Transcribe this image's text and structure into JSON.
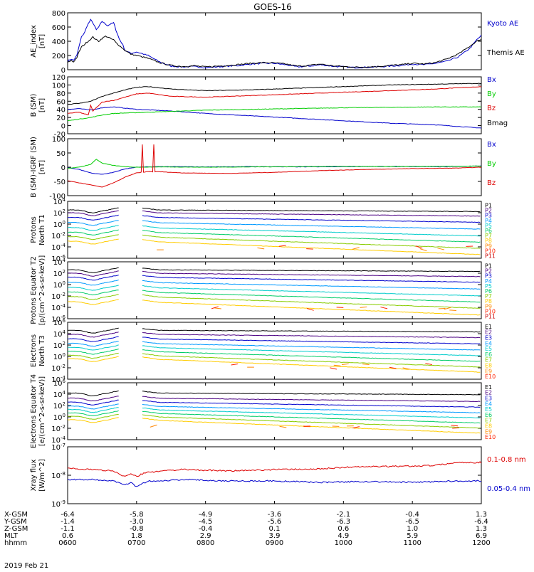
{
  "title": "GOES-16",
  "date": "2019 Feb 21",
  "chart_data": [
    {
      "type": "line",
      "id": "ae",
      "ylabel": "AE_index [nT]",
      "ylim": [
        0,
        800
      ],
      "yticks": [
        "0",
        "200",
        "400",
        "600",
        "800"
      ],
      "series": [
        {
          "name": "Kyoto AE",
          "color": "#0000cc",
          "x": [
            0,
            3,
            5,
            8,
            10,
            12,
            15,
            17,
            20,
            22,
            25,
            27,
            30,
            33,
            35,
            37,
            40,
            42,
            45,
            48,
            50,
            55,
            60,
            70,
            80,
            90,
            100,
            110,
            120,
            130,
            140,
            150,
            160,
            170,
            180,
            190,
            200,
            210,
            220,
            230,
            240,
            250,
            260,
            270,
            280,
            290,
            300,
            310,
            320,
            330,
            340,
            350,
            356,
            360
          ],
          "values": [
            120,
            150,
            130,
            200,
            330,
            460,
            530,
            620,
            700,
            660,
            560,
            600,
            680,
            640,
            620,
            640,
            660,
            560,
            430,
            350,
            270,
            230,
            250,
            200,
            110,
            50,
            40,
            45,
            30,
            40,
            50,
            60,
            80,
            90,
            90,
            70,
            40,
            50,
            70,
            50,
            40,
            30,
            35,
            40,
            50,
            60,
            80,
            70,
            90,
            120,
            180,
            300,
            420,
            480
          ]
        },
        {
          "name": "Themis AE",
          "color": "#000000",
          "x": [
            0,
            3,
            5,
            8,
            10,
            12,
            15,
            17,
            20,
            22,
            25,
            27,
            30,
            33,
            35,
            37,
            40,
            42,
            45,
            48,
            50,
            55,
            60,
            70,
            80,
            90,
            100,
            110,
            120,
            130,
            140,
            150,
            160,
            170,
            180,
            190,
            200,
            210,
            220,
            230,
            240,
            250,
            260,
            270,
            280,
            290,
            300,
            310,
            320,
            330,
            340,
            350,
            356,
            360
          ],
          "values": [
            100,
            130,
            110,
            170,
            250,
            320,
            360,
            390,
            430,
            460,
            420,
            400,
            440,
            470,
            460,
            440,
            420,
            380,
            340,
            300,
            270,
            220,
            200,
            160,
            100,
            60,
            45,
            55,
            40,
            50,
            60,
            75,
            90,
            100,
            95,
            80,
            50,
            60,
            80,
            55,
            45,
            35,
            40,
            45,
            60,
            70,
            90,
            80,
            100,
            150,
            220,
            330,
            400,
            430
          ]
        }
      ]
    },
    {
      "type": "line",
      "id": "bsm",
      "ylabel": "B (SM) [nT]",
      "ylim": [
        -20,
        120
      ],
      "yticks": [
        "-20",
        "0",
        "20",
        "40",
        "60",
        "80",
        "100",
        "120"
      ],
      "series": [
        {
          "name": "Bx",
          "color": "#0000cc",
          "x": [
            0,
            10,
            20,
            30,
            40,
            60,
            90,
            120,
            160,
            200,
            240,
            280,
            320,
            340,
            360
          ],
          "values": [
            40,
            42,
            38,
            44,
            46,
            40,
            36,
            30,
            24,
            18,
            12,
            6,
            2,
            -2,
            -6
          ]
        },
        {
          "name": "By",
          "color": "#00cc00",
          "x": [
            0,
            10,
            20,
            30,
            40,
            60,
            90,
            120,
            160,
            200,
            240,
            280,
            320,
            360
          ],
          "values": [
            12,
            16,
            20,
            26,
            30,
            32,
            35,
            38,
            40,
            42,
            44,
            45,
            46,
            46
          ]
        },
        {
          "name": "Bz",
          "color": "#dd0000",
          "x": [
            0,
            10,
            18,
            20,
            22,
            30,
            40,
            50,
            60,
            70,
            90,
            120,
            160,
            200,
            240,
            280,
            320,
            360
          ],
          "values": [
            30,
            33,
            26,
            50,
            36,
            58,
            62,
            70,
            78,
            80,
            72,
            70,
            74,
            78,
            82,
            86,
            90,
            96
          ]
        },
        {
          "name": "Bmag",
          "color": "#000000",
          "x": [
            0,
            10,
            20,
            30,
            40,
            50,
            60,
            70,
            90,
            120,
            160,
            200,
            240,
            280,
            320,
            360
          ],
          "values": [
            52,
            55,
            60,
            72,
            80,
            88,
            94,
            96,
            90,
            86,
            88,
            92,
            96,
            100,
            102,
            104
          ]
        }
      ]
    },
    {
      "type": "line",
      "id": "bigrf",
      "ylabel": "B (SM)-IGRF (SM) [nT]",
      "ylim": [
        -100,
        100
      ],
      "yticks": [
        "-100",
        "-50",
        "0",
        "50",
        "100"
      ],
      "series": [
        {
          "name": "Bx",
          "color": "#0000cc",
          "x": [
            0,
            10,
            20,
            30,
            40,
            50,
            60,
            80,
            120,
            160,
            200,
            240,
            280,
            320,
            360
          ],
          "values": [
            -2,
            -8,
            -20,
            -25,
            -18,
            -6,
            0,
            2,
            1,
            2,
            1,
            2,
            3,
            2,
            4
          ]
        },
        {
          "name": "By",
          "color": "#00cc00",
          "x": [
            0,
            10,
            20,
            25,
            30,
            40,
            50,
            60,
            80,
            120,
            160,
            200,
            240,
            280,
            320,
            360
          ],
          "values": [
            -4,
            0,
            10,
            28,
            14,
            6,
            2,
            0,
            1,
            0,
            1,
            2,
            3,
            2,
            3,
            4
          ]
        },
        {
          "name": "Bz",
          "color": "#dd0000",
          "x": [
            0,
            10,
            20,
            30,
            40,
            50,
            60,
            64,
            65,
            66,
            70,
            74,
            75,
            76,
            80,
            100,
            140,
            180,
            220,
            260,
            300,
            340,
            360
          ],
          "values": [
            -48,
            -55,
            -62,
            -70,
            -55,
            -35,
            -20,
            -18,
            80,
            -18,
            -15,
            -16,
            80,
            -16,
            -16,
            -20,
            -22,
            -18,
            -12,
            -8,
            -5,
            -3,
            0
          ]
        }
      ]
    },
    {
      "type": "line",
      "id": "pt1",
      "ylabel": "Protons North T1",
      "ylim": [
        -6,
        4
      ],
      "yscale": "log",
      "yticks": [
        "10^-6",
        "10^-4",
        "10^-2",
        "10^0",
        "10^2",
        "10^4"
      ],
      "series_names": [
        "P1",
        "P2",
        "P3",
        "P4",
        "P5",
        "P6",
        "P7",
        "P8",
        "P9",
        "P10",
        "P11"
      ],
      "series_colors": [
        "#000000",
        "#4b0082",
        "#0000cc",
        "#0099ff",
        "#00cccc",
        "#00cc66",
        "#88cc00",
        "#ffcc00",
        "#ff8800",
        "#ff2200",
        "#cc0000"
      ],
      "levels": [
        2.5,
        2.0,
        1.2,
        0.3,
        -0.6,
        -1.4,
        -2.2,
        -3.0
      ],
      "gap": [
        45,
        65
      ]
    },
    {
      "type": "line",
      "id": "pt2",
      "ylabel": "Protons Equator T2 [p/(cm^2-s-sr-keV)]",
      "ylim": [
        -6,
        4
      ],
      "yscale": "log",
      "yticks": [
        "10^-6",
        "10^-4",
        "10^-2",
        "10^0",
        "10^2",
        "10^4"
      ],
      "series_names": [
        "P1",
        "P2",
        "P3",
        "P4",
        "P5",
        "P6",
        "P7",
        "P8",
        "P9",
        "P10",
        "P11"
      ],
      "series_colors": [
        "#000000",
        "#4b0082",
        "#0000cc",
        "#0099ff",
        "#00cccc",
        "#00cc66",
        "#88cc00",
        "#ffcc00",
        "#ff8800",
        "#ff2200",
        "#cc0000"
      ],
      "levels": [
        2.6,
        2.0,
        1.3,
        0.4,
        -0.5,
        -1.3,
        -2.1,
        -3.0
      ],
      "gap": [
        45,
        65
      ]
    },
    {
      "type": "line",
      "id": "et3",
      "ylabel": "Electrons North T3",
      "ylim": [
        -4,
        6
      ],
      "yscale": "log",
      "yticks": [
        "10^-4",
        "10^-2",
        "10^0",
        "10^2",
        "10^4",
        "10^6"
      ],
      "series_names": [
        "E1",
        "E2",
        "E3",
        "E4",
        "E5",
        "E6",
        "E7",
        "E8",
        "E9",
        "E10"
      ],
      "series_colors": [
        "#000000",
        "#4b0082",
        "#0000cc",
        "#0099ff",
        "#00cccc",
        "#00cc66",
        "#88cc00",
        "#ffcc00",
        "#ff8800",
        "#ff2200"
      ],
      "levels": [
        4.6,
        3.9,
        3.1,
        2.3,
        1.6,
        0.9,
        0.2,
        -0.4
      ],
      "gap": [
        45,
        65
      ]
    },
    {
      "type": "line",
      "id": "et4",
      "ylabel": "Electrons Equator T4 [e/(cm^2-s-sr-keV)]",
      "ylim": [
        -4,
        6
      ],
      "yscale": "log",
      "yticks": [
        "10^-4",
        "10^-2",
        "10^0",
        "10^2",
        "10^4",
        "10^6"
      ],
      "series_names": [
        "E1",
        "E2",
        "E3",
        "E4",
        "E5",
        "E6",
        "E7",
        "E8",
        "E9",
        "E10"
      ],
      "series_colors": [
        "#000000",
        "#4b0082",
        "#0000cc",
        "#0099ff",
        "#00cccc",
        "#00cc66",
        "#88cc00",
        "#ffcc00",
        "#ff8800",
        "#ff2200"
      ],
      "levels": [
        4.2,
        3.3,
        2.6,
        1.9,
        1.3,
        0.7,
        0.1,
        -0.5
      ],
      "gap": [
        45,
        65
      ]
    },
    {
      "type": "line",
      "id": "xray",
      "ylabel": "Xray flux [W/m^2]",
      "ylim": [
        -9,
        -7
      ],
      "yscale": "log",
      "yticks": [
        "10^-9",
        "10^-8",
        "10^-7"
      ],
      "series": [
        {
          "name": "0.1-0.8 nm",
          "color": "#dd0000",
          "x": [
            0,
            20,
            40,
            50,
            55,
            60,
            65,
            70,
            80,
            100,
            140,
            180,
            220,
            240,
            260,
            300,
            320,
            340,
            360
          ],
          "values": [
            -7.75,
            -7.8,
            -7.85,
            -8.05,
            -7.95,
            -8.05,
            -7.95,
            -7.9,
            -7.85,
            -7.8,
            -7.85,
            -7.8,
            -7.78,
            -7.72,
            -7.7,
            -7.68,
            -7.65,
            -7.55,
            -7.55
          ]
        },
        {
          "name": "0.05-0.4 nm",
          "color": "#0000cc",
          "x": [
            0,
            20,
            40,
            50,
            55,
            60,
            65,
            70,
            80,
            100,
            140,
            180,
            220,
            260,
            300,
            340,
            360
          ],
          "values": [
            -8.15,
            -8.15,
            -8.2,
            -8.35,
            -8.25,
            -8.4,
            -8.3,
            -8.2,
            -8.2,
            -8.15,
            -8.2,
            -8.2,
            -8.25,
            -8.22,
            -8.25,
            -8.2,
            -8.2
          ]
        }
      ]
    }
  ],
  "x_axis": {
    "rows": [
      "X-GSM",
      "Y-GSM",
      "Z-GSM",
      "MLT",
      "hhmm"
    ],
    "columns": [
      {
        "t": 0,
        "X-GSM": "-6.4",
        "Y-GSM": "-1.4",
        "Z-GSM": "-1.1",
        "MLT": "0.6",
        "hhmm": "0600"
      },
      {
        "t": 60,
        "X-GSM": "-5.8",
        "Y-GSM": "-3.0",
        "Z-GSM": "-0.8",
        "MLT": "1.8",
        "hhmm": "0700"
      },
      {
        "t": 120,
        "X-GSM": "-4.9",
        "Y-GSM": "-4.5",
        "Z-GSM": "-0.4",
        "MLT": "2.9",
        "hhmm": "0800"
      },
      {
        "t": 180,
        "X-GSM": "-3.6",
        "Y-GSM": "-5.6",
        "Z-GSM": "0.1",
        "MLT": "3.9",
        "hhmm": "0900"
      },
      {
        "t": 240,
        "X-GSM": "-2.1",
        "Y-GSM": "-6.3",
        "Z-GSM": "0.6",
        "MLT": "4.9",
        "hhmm": "1000"
      },
      {
        "t": 300,
        "X-GSM": "-0.4",
        "Y-GSM": "-6.5",
        "Z-GSM": "1.0",
        "MLT": "5.9",
        "hhmm": "1100"
      },
      {
        "t": 360,
        "X-GSM": "1.3",
        "Y-GSM": "-6.4",
        "Z-GSM": "1.3",
        "MLT": "6.9",
        "hhmm": "1200"
      }
    ]
  }
}
